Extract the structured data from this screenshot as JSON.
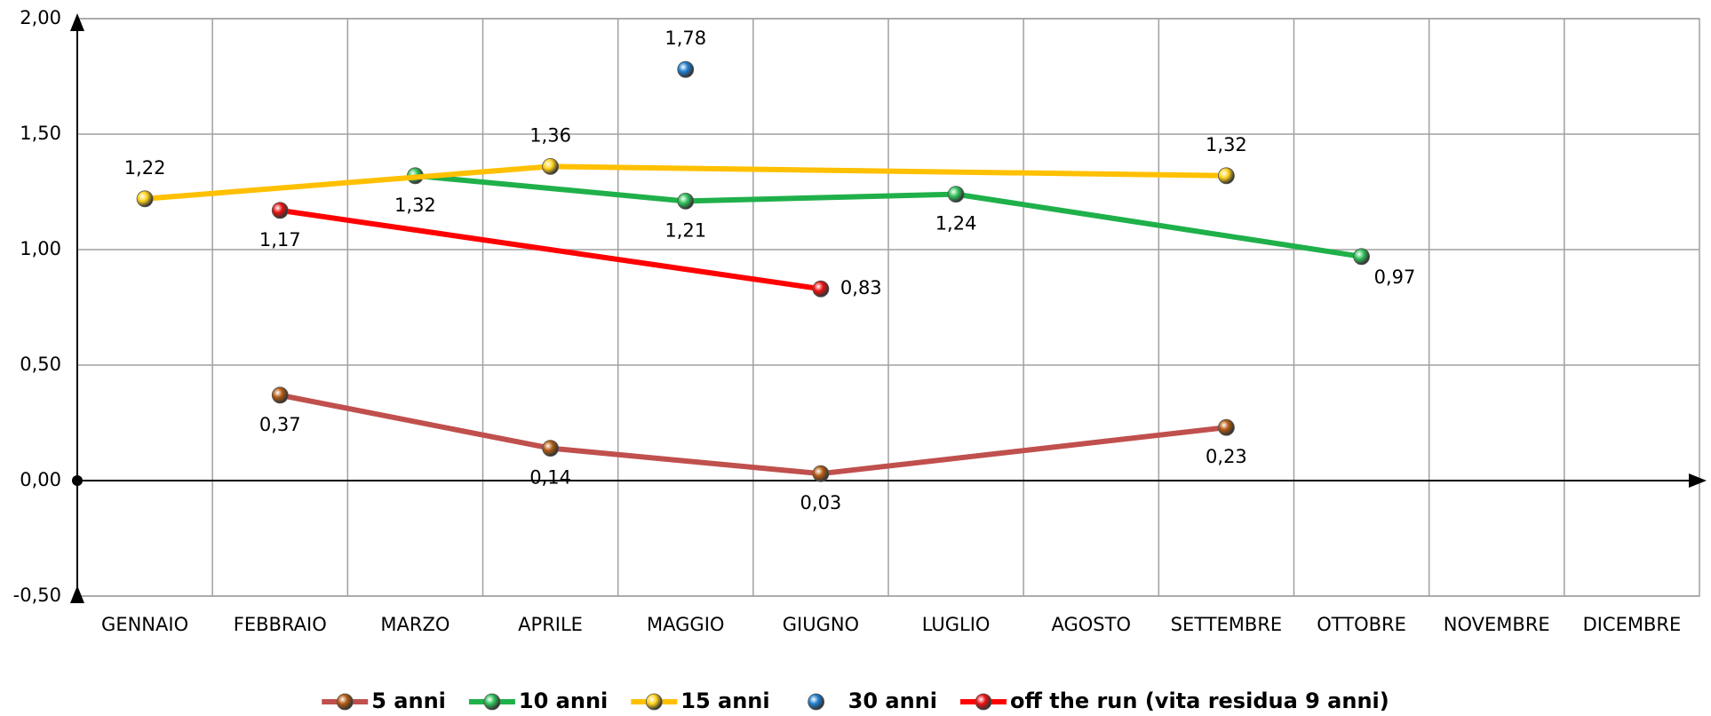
{
  "chart_data": {
    "type": "line",
    "categories": [
      "GENNAIO",
      "FEBBRAIO",
      "MARZO",
      "APRILE",
      "MAGGIO",
      "GIUGNO",
      "LUGLIO",
      "AGOSTO",
      "SETTEMBRE",
      "OTTOBRE",
      "NOVEMBRE",
      "DICEMBRE"
    ],
    "series": [
      {
        "name": "5 anni",
        "color": "#c0504d",
        "marker_color": "#b35a10",
        "values": [
          null,
          0.37,
          null,
          0.14,
          null,
          0.03,
          null,
          null,
          0.23,
          null,
          null,
          null
        ],
        "value_labels": [
          null,
          "0,37",
          null,
          "0,14",
          null,
          "0,03",
          null,
          null,
          "0,23",
          null,
          null,
          null
        ]
      },
      {
        "name": "10 anni",
        "color": "#1fb04a",
        "marker_color": "#2fc25a",
        "values": [
          null,
          null,
          1.32,
          null,
          1.21,
          null,
          1.24,
          null,
          null,
          0.97,
          null,
          null
        ],
        "value_labels": [
          null,
          null,
          "1,32",
          null,
          "1,21",
          null,
          "1,24",
          null,
          null,
          "0,97",
          null,
          null
        ]
      },
      {
        "name": "15 anni",
        "color": "#ffc000",
        "marker_color": "#ffd21a",
        "values": [
          1.22,
          null,
          null,
          1.36,
          null,
          null,
          null,
          null,
          1.32,
          null,
          null,
          null
        ],
        "value_labels": [
          "1,22",
          null,
          null,
          "1,36",
          null,
          null,
          null,
          null,
          "1,32",
          null,
          null,
          null
        ]
      },
      {
        "name": "30 anni",
        "color": "#1f7fd0",
        "marker_color": "#1f7fd0",
        "show_line": false,
        "values": [
          null,
          null,
          null,
          null,
          1.78,
          null,
          null,
          null,
          null,
          null,
          null,
          null
        ],
        "value_labels": [
          null,
          null,
          null,
          null,
          "1,78",
          null,
          null,
          null,
          null,
          null,
          null,
          null
        ]
      },
      {
        "name": "off the run (vita residua 9 anni)",
        "color": "#ff0000",
        "marker_color": "#ee1010",
        "values": [
          null,
          1.17,
          null,
          null,
          null,
          0.83,
          null,
          null,
          null,
          null,
          null,
          null
        ],
        "value_labels": [
          null,
          "1,17",
          null,
          null,
          null,
          "0,83",
          null,
          null,
          null,
          null,
          null,
          null
        ]
      }
    ],
    "ylim": [
      -0.5,
      2
    ],
    "yticks": [
      {
        "value": -0.5,
        "label": "-0,50"
      },
      {
        "value": 0,
        "label": "0,00"
      },
      {
        "value": 0.5,
        "label": "0,50"
      },
      {
        "value": 1,
        "label": "1,00"
      },
      {
        "value": 1.5,
        "label": "1,50"
      },
      {
        "value": 2,
        "label": "2,00"
      }
    ],
    "grid": true,
    "span_gaps": true,
    "legend": "bottom"
  }
}
